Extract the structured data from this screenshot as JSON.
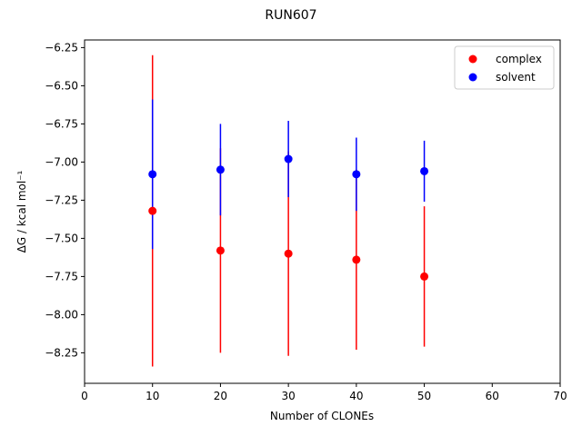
{
  "chart_data": {
    "type": "scatter",
    "title": "RUN607",
    "xlabel": "Number of CLONEs",
    "ylabel": "ΔG / kcal mol⁻¹",
    "xlim": [
      0,
      70
    ],
    "ylim": [
      -8.45,
      -6.2
    ],
    "xticks": [
      0,
      10,
      20,
      30,
      40,
      50,
      60,
      70
    ],
    "yticks": [
      -8.25,
      -8.0,
      -7.75,
      -7.5,
      -7.25,
      -7.0,
      -6.75,
      -6.5,
      -6.25
    ],
    "xtick_labels": [
      "0",
      "10",
      "20",
      "30",
      "40",
      "50",
      "60",
      "70"
    ],
    "ytick_labels": [
      "−8.25",
      "−8.00",
      "−7.75",
      "−7.50",
      "−7.25",
      "−7.00",
      "−6.75",
      "−6.50",
      "−6.25"
    ],
    "grid": false,
    "legend_position": "top-right",
    "series": [
      {
        "name": "complex",
        "color": "#ff0000",
        "points": [
          {
            "x": 10,
            "y": -7.32,
            "err": 1.02
          },
          {
            "x": 20,
            "y": -7.58,
            "err": 0.67
          },
          {
            "x": 30,
            "y": -7.6,
            "err": 0.67
          },
          {
            "x": 40,
            "y": -7.64,
            "err": 0.59
          },
          {
            "x": 50,
            "y": -7.75,
            "err": 0.46
          }
        ]
      },
      {
        "name": "solvent",
        "color": "#0000ff",
        "points": [
          {
            "x": 10,
            "y": -7.08,
            "err": 0.49
          },
          {
            "x": 20,
            "y": -7.05,
            "err": 0.3
          },
          {
            "x": 30,
            "y": -6.98,
            "err": 0.25
          },
          {
            "x": 40,
            "y": -7.08,
            "err": 0.24
          },
          {
            "x": 50,
            "y": -7.06,
            "err": 0.2
          }
        ]
      }
    ]
  }
}
